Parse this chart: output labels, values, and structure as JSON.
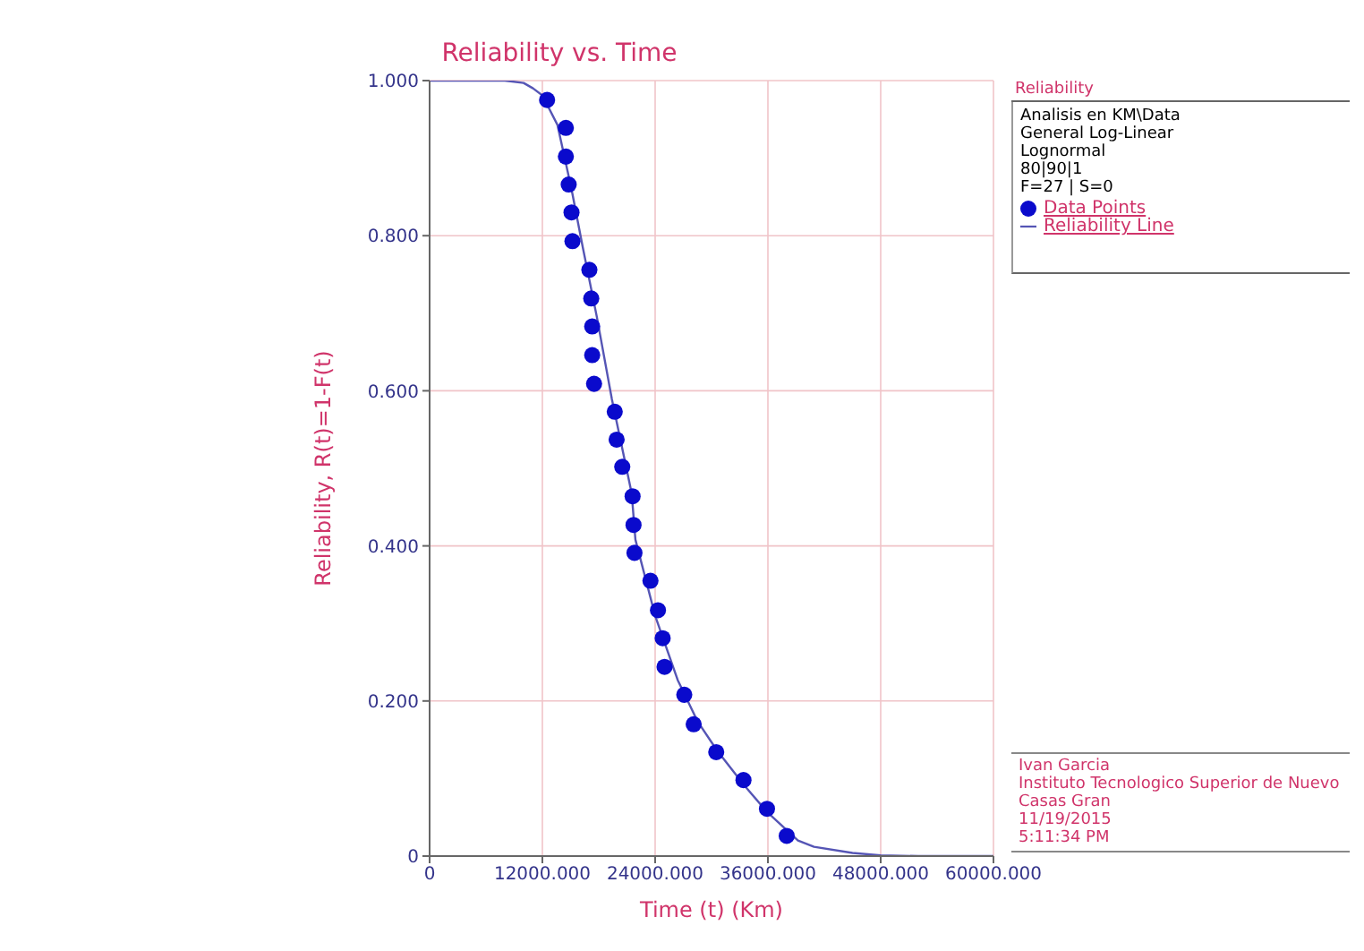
{
  "chart_data": {
    "type": "scatter",
    "title": "Reliability vs. Time",
    "xlabel": "Time (t) (Km)",
    "ylabel": "Reliability, R(t)=1-F(t)",
    "legend_title": "Reliability",
    "annotations": [
      "Analisis en KM\\Data",
      "General Log-Linear",
      "Lognormal",
      "80|90|1",
      "F=27 | S=0",
      "Ivan Garcia",
      "Instituto Tecnologico Superior de Nuevo Casas Gran",
      "11/19/2015",
      "5:11:34 PM"
    ],
    "xlim": [
      0,
      60000
    ],
    "ylim": [
      0,
      1
    ],
    "xticks": [
      0,
      {
        "value": 12000,
        "label": "12000.000"
      },
      {
        "value": 24000,
        "label": "24000.000"
      },
      {
        "value": 36000,
        "label": "36000.000"
      },
      {
        "value": 48000,
        "label": "48000.000"
      },
      {
        "value": 60000,
        "label": "60000.000"
      }
    ],
    "yticks": [
      0,
      {
        "value": 0.2,
        "label": "0.200"
      },
      {
        "value": 0.4,
        "label": "0.400"
      },
      {
        "value": 0.6,
        "label": "0.600"
      },
      {
        "value": 0.8,
        "label": "0.800"
      },
      {
        "value": 1,
        "label": "1.000"
      }
    ],
    "grid": true,
    "legend": "right",
    "marker": "circle",
    "series": [
      {
        "name": "Data Points",
        "color": "#0a0acc",
        "x": [
          12500,
          14500,
          14500,
          14800,
          15100,
          15200,
          17000,
          17200,
          17300,
          17300,
          17500,
          19700,
          19900,
          20500,
          21600,
          21700,
          21800,
          23500,
          24300,
          24800,
          25000,
          27100,
          28100,
          30500,
          33400,
          35900,
          38000
        ],
        "values": [
          0.975,
          0.939,
          0.902,
          0.866,
          0.83,
          0.793,
          0.756,
          0.719,
          0.683,
          0.646,
          0.609,
          0.573,
          0.537,
          0.502,
          0.464,
          0.427,
          0.391,
          0.355,
          0.317,
          0.281,
          0.244,
          0.208,
          0.17,
          0.134,
          0.098,
          0.061,
          0.026
        ]
      },
      {
        "name": "Reliability Line",
        "type": "line",
        "color": "#5555b5",
        "marker": "none",
        "x": [
          0,
          8000,
          10000,
          11000,
          12000,
          13600,
          15100,
          16300,
          17800,
          19400,
          21500,
          21900,
          24000,
          26400,
          28500,
          30600,
          33500,
          35900,
          39200,
          40900,
          45000,
          48000,
          52000,
          60000
        ],
        "values": [
          1,
          1,
          0.997,
          0.99,
          0.981,
          0.943,
          0.86,
          0.785,
          0.695,
          0.589,
          0.468,
          0.408,
          0.31,
          0.227,
          0.174,
          0.136,
          0.091,
          0.057,
          0.02,
          0.012,
          0.004,
          0.001,
          0,
          0
        ]
      }
    ]
  }
}
